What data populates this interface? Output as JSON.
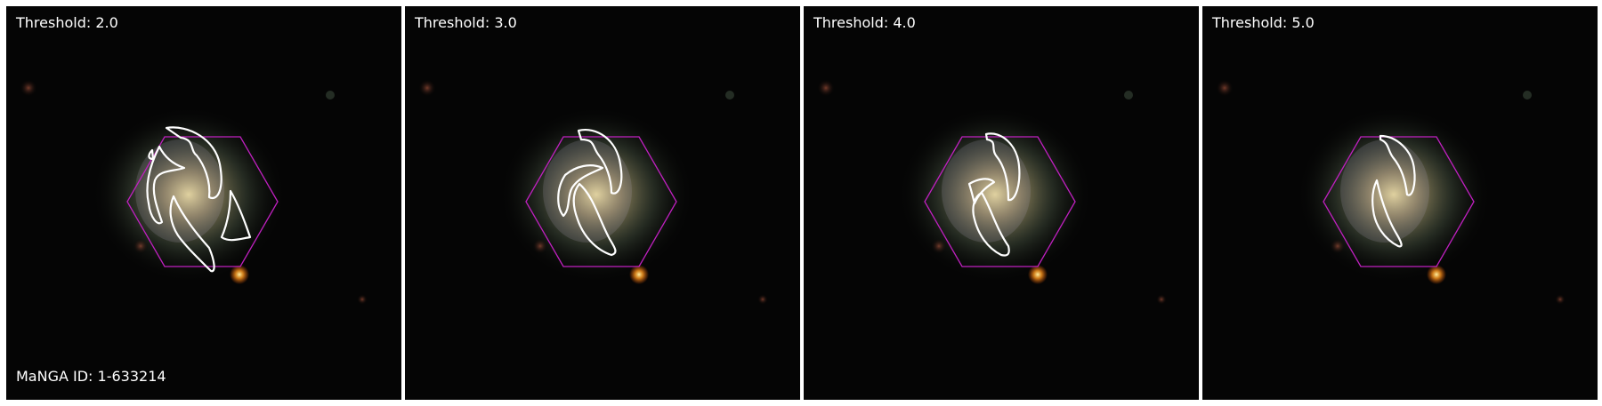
{
  "panels": [
    {
      "label": "Threshold: 2.0",
      "footer": "MaNGA ID: 1-633214"
    },
    {
      "label": "Threshold: 3.0"
    },
    {
      "label": "Threshold: 4.0"
    },
    {
      "label": "Threshold: 5.0"
    }
  ],
  "colors": {
    "background": "#050505",
    "hexagon": "#c020c0",
    "contour": "#ffffff",
    "star": "#ffaa33"
  }
}
